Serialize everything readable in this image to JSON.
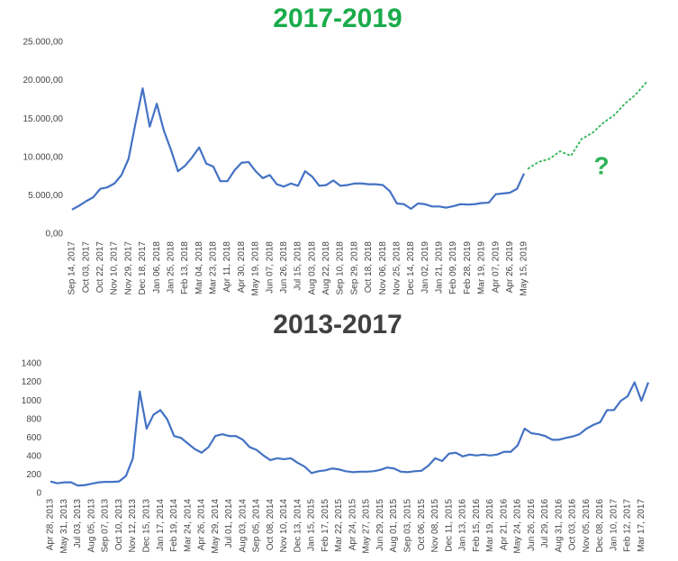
{
  "chart_data": [
    {
      "type": "line",
      "title": "2017-2019",
      "title_color": "#1aab4b",
      "categories": [
        "Sep 14, 2017",
        null,
        "Oct 03, 2017",
        null,
        "Oct 22, 2017",
        null,
        "Nov 10, 2017",
        null,
        "Nov 29, 2017",
        null,
        "Dec 18, 2017",
        null,
        "Jan 06, 2018",
        null,
        "Jan 25, 2018",
        null,
        "Feb 13, 2018",
        null,
        "Mar 04, 2018",
        null,
        "Mar 23, 2018",
        null,
        "Apr 11, 2018",
        null,
        "Apr 30, 2018",
        null,
        "May 19, 2018",
        null,
        "Jun 07, 2018",
        null,
        "Jun 26, 2018",
        null,
        "Jul 15, 2018",
        null,
        "Aug 03, 2018",
        null,
        "Aug 22, 2018",
        null,
        "Sep 10, 2018",
        null,
        "Sep 29, 2018",
        null,
        "Oct 18, 2018",
        null,
        "Nov 06, 2018",
        null,
        "Nov 25, 2018",
        null,
        "Dec 14, 2018",
        null,
        "Jan 02, 2019",
        null,
        "Jan 21, 2019",
        null,
        "Feb 09, 2019",
        null,
        "Feb 28, 2019",
        null,
        "Mar 19, 2019",
        null,
        "Apr 07, 2019",
        null,
        "Apr 26, 2019",
        null,
        "May 15, 2019"
      ],
      "series": [
        {
          "color": "#4472c4",
          "values": [
            3200,
            3700,
            4300,
            4800,
            5900,
            6100,
            6600,
            7700,
            9800,
            14500,
            19000,
            14000,
            17000,
            13500,
            11000,
            8200,
            8900,
            10000,
            11300,
            9200,
            8800,
            6900,
            6900,
            8300,
            9300,
            9400,
            8200,
            7300,
            7700,
            6500,
            6200,
            6600,
            6300,
            8200,
            7500,
            6300,
            6400,
            7000,
            6300,
            6400,
            6600,
            6600,
            6500,
            6500,
            6400,
            5600,
            4000,
            3900,
            3300,
            4000,
            3900,
            3600,
            3600,
            3450,
            3650,
            3900,
            3850,
            3900,
            4050,
            4100,
            5200,
            5300,
            5400,
            5900,
            7900
          ]
        }
      ],
      "forecast": {
        "color": "#2fb456",
        "dashed": true,
        "values": [
          8500,
          9400,
          9800,
          10800,
          10200,
          12400,
          13200,
          14500,
          15500,
          17000,
          18200,
          19800
        ]
      },
      "annotation": {
        "text": "?",
        "color": "#2fb456"
      },
      "ylim": [
        0,
        25000
      ],
      "yticks": [
        {
          "value": 0,
          "label": "0,00"
        },
        {
          "value": 5000,
          "label": "5.000,00"
        },
        {
          "value": 10000,
          "label": "10.000,00"
        },
        {
          "value": 15000,
          "label": "15.000,00"
        },
        {
          "value": 20000,
          "label": "20.000,00"
        },
        {
          "value": 25000,
          "label": "25.000,00"
        }
      ],
      "grid": false
    },
    {
      "type": "line",
      "title": "2013-2017",
      "title_color": "#404040",
      "categories": [
        "Apr 28, 2013",
        null,
        "May 31, 2013",
        null,
        "Jul 03, 2013",
        null,
        "Aug 05, 2013",
        null,
        "Sep 07, 2013",
        null,
        "Oct 10, 2013",
        null,
        "Nov 12, 2013",
        null,
        "Dec 15, 2013",
        null,
        "Jan 17, 2014",
        null,
        "Feb 19, 2014",
        null,
        "Mar 24, 2014",
        null,
        "Apr 26, 2014",
        null,
        "May 29, 2014",
        null,
        "Jul 01, 2014",
        null,
        "Aug 03, 2014",
        null,
        "Sep 05, 2014",
        null,
        "Oct 08, 2014",
        null,
        "Nov 10, 2014",
        null,
        "Dec 13, 2014",
        null,
        "Jan 15, 2015",
        null,
        "Feb 17, 2015",
        null,
        "Mar 22, 2015",
        null,
        "Apr 24, 2015",
        null,
        "May 27, 2015",
        null,
        "Jun 29, 2015",
        null,
        "Aug 01, 2015",
        null,
        "Sep 03, 2015",
        null,
        "Oct 06, 2015",
        null,
        "Nov 08, 2015",
        null,
        "Dec 11, 2015",
        null,
        "Jan 13, 2016",
        null,
        "Feb 15, 2016",
        null,
        "Mar 19, 2016",
        null,
        "Apr 21, 2016",
        null,
        "May 24, 2016",
        null,
        "Jun 26, 2016",
        null,
        "Jul 29, 2016",
        null,
        "Aug 31, 2016",
        null,
        "Oct 03, 2016",
        null,
        "Nov 05, 2016",
        null,
        "Dec 08, 2016",
        null,
        "Jan 10, 2017",
        null,
        "Feb 12, 2017",
        null,
        "Mar 17, 2017",
        null
      ],
      "series": [
        {
          "color": "#4472c4",
          "values": [
            130,
            110,
            120,
            120,
            85,
            90,
            105,
            120,
            125,
            125,
            130,
            190,
            380,
            1100,
            700,
            850,
            900,
            800,
            620,
            600,
            540,
            480,
            440,
            500,
            620,
            640,
            620,
            620,
            580,
            500,
            470,
            410,
            360,
            380,
            370,
            380,
            330,
            290,
            220,
            240,
            250,
            270,
            260,
            240,
            230,
            235,
            235,
            240,
            255,
            280,
            270,
            235,
            230,
            240,
            245,
            300,
            380,
            350,
            430,
            440,
            400,
            420,
            410,
            420,
            410,
            420,
            450,
            450,
            520,
            700,
            650,
            640,
            620,
            580,
            580,
            600,
            615,
            640,
            700,
            740,
            770,
            900,
            900,
            1000,
            1050,
            1200,
            1000,
            1200
          ]
        }
      ],
      "ylim": [
        0,
        1400
      ],
      "yticks": [
        0,
        200,
        400,
        600,
        800,
        1000,
        1200,
        1400
      ],
      "grid": false
    }
  ]
}
